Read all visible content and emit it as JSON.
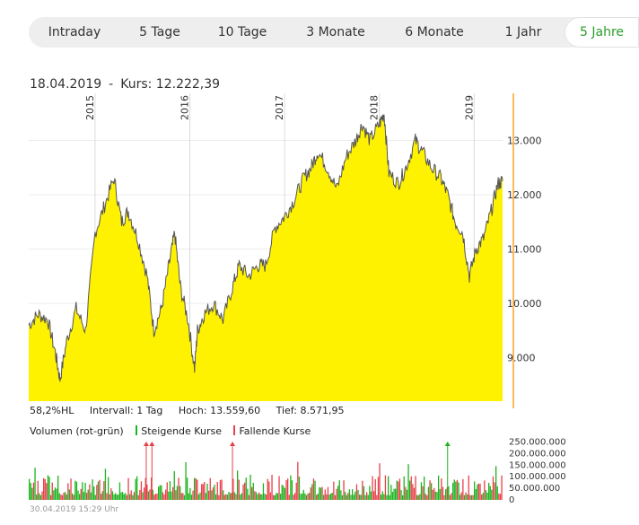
{
  "tabs": [
    {
      "label": "Intraday",
      "active": false
    },
    {
      "label": "5 Tage",
      "active": false
    },
    {
      "label": "10 Tage",
      "active": false
    },
    {
      "label": "3 Monate",
      "active": false
    },
    {
      "label": "6 Monate",
      "active": false
    },
    {
      "label": "1 Jahr",
      "active": false
    },
    {
      "label": "5 Jahre",
      "active": true
    }
  ],
  "header": {
    "date": "18.04.2019",
    "separator": "-",
    "price_label": "Kurs: 12.222,39"
  },
  "stats": {
    "hl": "58,2%HL",
    "interval": "Intervall: 1 Tag",
    "high": "Hoch: 13.559,60",
    "low": "Tief: 8.571,95"
  },
  "volume_legend": {
    "title": "Volumen (rot-grün)",
    "rising": "Steigende Kurse",
    "falling": "Fallende Kurse",
    "rising_color": "#1db31d",
    "falling_color": "#e8404a"
  },
  "timestamp": "30.04.2019 15:29 Uhr",
  "colors": {
    "area_fill": "#fff200",
    "line": "#555555",
    "axis": "#f5a623",
    "active_tab": "#2a9d2a"
  },
  "chart_data": [
    {
      "type": "area",
      "x_unit": "year",
      "x_ticks": [
        "2015",
        "2016",
        "2017",
        "2018",
        "2019"
      ],
      "x_tick_values": [
        2015.0,
        2016.0,
        2017.0,
        2018.0,
        2019.0
      ],
      "x_range": [
        2014.3,
        2019.3
      ],
      "y_range": [
        8200,
        13900
      ],
      "y_ticks": [
        9000,
        10000,
        11000,
        12000,
        13000
      ],
      "y_tick_labels": [
        "9.000",
        "10.000",
        "11.000",
        "12.000",
        "13.000"
      ],
      "grid": "horizontal",
      "points": [
        [
          2014.3,
          9600
        ],
        [
          2014.4,
          9800
        ],
        [
          2014.5,
          9700
        ],
        [
          2014.58,
          9100
        ],
        [
          2014.63,
          8600
        ],
        [
          2014.7,
          9300
        ],
        [
          2014.8,
          9900
        ],
        [
          2014.9,
          9500
        ],
        [
          2015.0,
          11300
        ],
        [
          2015.1,
          11800
        ],
        [
          2015.2,
          12300
        ],
        [
          2015.28,
          11500
        ],
        [
          2015.35,
          11700
        ],
        [
          2015.45,
          11200
        ],
        [
          2015.55,
          10500
        ],
        [
          2015.62,
          9500
        ],
        [
          2015.7,
          9900
        ],
        [
          2015.78,
          10700
        ],
        [
          2015.84,
          11300
        ],
        [
          2015.9,
          10300
        ],
        [
          2015.98,
          9700
        ],
        [
          2016.05,
          8800
        ],
        [
          2016.08,
          9500
        ],
        [
          2016.15,
          9800
        ],
        [
          2016.25,
          10000
        ],
        [
          2016.35,
          9700
        ],
        [
          2016.45,
          10300
        ],
        [
          2016.52,
          10700
        ],
        [
          2016.62,
          10500
        ],
        [
          2016.72,
          10700
        ],
        [
          2016.8,
          10700
        ],
        [
          2016.9,
          11400
        ],
        [
          2017.0,
          11600
        ],
        [
          2017.1,
          11900
        ],
        [
          2017.2,
          12300
        ],
        [
          2017.28,
          12500
        ],
        [
          2017.35,
          12800
        ],
        [
          2017.45,
          12500
        ],
        [
          2017.55,
          12100
        ],
        [
          2017.65,
          12700
        ],
        [
          2017.75,
          13000
        ],
        [
          2017.82,
          13300
        ],
        [
          2017.9,
          13000
        ],
        [
          2018.0,
          13300
        ],
        [
          2018.05,
          13500
        ],
        [
          2018.1,
          12400
        ],
        [
          2018.2,
          12200
        ],
        [
          2018.28,
          12500
        ],
        [
          2018.38,
          13000
        ],
        [
          2018.45,
          12800
        ],
        [
          2018.55,
          12500
        ],
        [
          2018.65,
          12300
        ],
        [
          2018.72,
          12000
        ],
        [
          2018.8,
          11500
        ],
        [
          2018.88,
          11300
        ],
        [
          2018.95,
          10500
        ],
        [
          2019.02,
          11000
        ],
        [
          2019.1,
          11200
        ],
        [
          2019.18,
          11700
        ],
        [
          2019.25,
          12200
        ],
        [
          2019.3,
          12250
        ]
      ]
    },
    {
      "type": "bar",
      "name": "Volumen",
      "y_range": [
        0,
        260000000
      ],
      "y_ticks": [
        0,
        50000000,
        100000000,
        150000000,
        200000000,
        250000000
      ],
      "y_tick_labels": [
        "0",
        "50.000.000",
        "100.000.000",
        "150.000.000",
        "200.000.000",
        "250.000.000"
      ],
      "series_colors": [
        "#1db31d",
        "#e8404a"
      ],
      "overflow_markers": [
        {
          "x": 2015.54,
          "color": "#e8404a"
        },
        {
          "x": 2015.6,
          "color": "#e8404a"
        },
        {
          "x": 2016.45,
          "color": "#e8404a"
        },
        {
          "x": 2018.72,
          "color": "#1db31d"
        }
      ]
    }
  ]
}
